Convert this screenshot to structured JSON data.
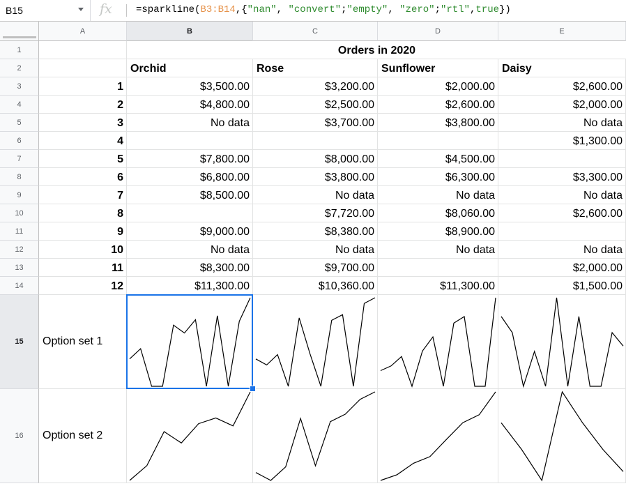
{
  "formula_bar": {
    "name_box": "B15",
    "fx_label": "fx",
    "formula_parts": [
      {
        "text": "=sparkline(",
        "kind": "plain"
      },
      {
        "text": "B3:B14",
        "kind": "range"
      },
      {
        "text": ",{",
        "kind": "plain"
      },
      {
        "text": "\"nan\"",
        "kind": "str"
      },
      {
        "text": ", ",
        "kind": "plain"
      },
      {
        "text": "\"convert\"",
        "kind": "str"
      },
      {
        "text": ";",
        "kind": "plain"
      },
      {
        "text": "\"empty\"",
        "kind": "str"
      },
      {
        "text": ", ",
        "kind": "plain"
      },
      {
        "text": "\"zero\"",
        "kind": "str"
      },
      {
        "text": ";",
        "kind": "plain"
      },
      {
        "text": "\"rtl\"",
        "kind": "str"
      },
      {
        "text": ",",
        "kind": "plain"
      },
      {
        "text": "true",
        "kind": "str"
      },
      {
        "text": "})",
        "kind": "plain"
      }
    ]
  },
  "columns": [
    "A",
    "B",
    "C",
    "D",
    "E"
  ],
  "selected_column": "B",
  "rows": [
    "1",
    "2",
    "3",
    "4",
    "5",
    "6",
    "7",
    "8",
    "9",
    "10",
    "11",
    "12",
    "13",
    "14",
    "15",
    "16"
  ],
  "selected_row": "15",
  "title": "Orders in 2020",
  "flowers": [
    "Orchid",
    "Rose",
    "Sunflower",
    "Daisy"
  ],
  "months": [
    "1",
    "2",
    "3",
    "4",
    "5",
    "6",
    "7",
    "8",
    "9",
    "10",
    "11",
    "12"
  ],
  "values": [
    [
      "$3,500.00",
      "$3,200.00",
      "$2,000.00",
      "$2,600.00"
    ],
    [
      "$4,800.00",
      "$2,500.00",
      "$2,600.00",
      "$2,000.00"
    ],
    [
      "No data",
      "$3,700.00",
      "$3,800.00",
      "No data"
    ],
    [
      "",
      "",
      "",
      "$1,300.00"
    ],
    [
      "$7,800.00",
      "$8,000.00",
      "$4,500.00",
      ""
    ],
    [
      "$6,800.00",
      "$3,800.00",
      "$6,300.00",
      "$3,300.00"
    ],
    [
      "$8,500.00",
      "No data",
      "No data",
      "No data"
    ],
    [
      "",
      "$7,720.00",
      "$8,060.00",
      "$2,600.00"
    ],
    [
      "$9,000.00",
      "$8,380.00",
      "$8,900.00",
      ""
    ],
    [
      "No data",
      "No data",
      "No data",
      "No data"
    ],
    [
      "$8,300.00",
      "$9,700.00",
      "",
      "$2,000.00"
    ],
    [
      "$11,300.00",
      "$10,360.00",
      "$11,300.00",
      "$1,500.00"
    ]
  ],
  "option_labels": [
    "Option set 1",
    "Option set 2"
  ],
  "sparkline_data": {
    "set1": [
      [
        3500,
        4800,
        0,
        0,
        7800,
        6800,
        8500,
        0,
        9000,
        0,
        8300,
        11300
      ],
      [
        3200,
        2500,
        3700,
        0,
        8000,
        3800,
        0,
        7720,
        8380,
        0,
        9700,
        10360
      ],
      [
        2000,
        2600,
        3800,
        0,
        4500,
        6300,
        0,
        8060,
        8900,
        0,
        0,
        11300
      ],
      [
        2600,
        2000,
        0,
        1300,
        0,
        3300,
        0,
        2600,
        0,
        0,
        2000,
        1500
      ]
    ],
    "set2": [
      [
        3500,
        4800,
        7800,
        6800,
        8500,
        9000,
        8300,
        11300
      ],
      [
        3200,
        2500,
        3700,
        8000,
        3800,
        7720,
        8380,
        9700,
        10360
      ],
      [
        2000,
        2600,
        3800,
        4500,
        6300,
        8060,
        8900,
        11300
      ],
      [
        2600,
        2000,
        1300,
        3300,
        2600,
        2000,
        1500
      ]
    ]
  }
}
